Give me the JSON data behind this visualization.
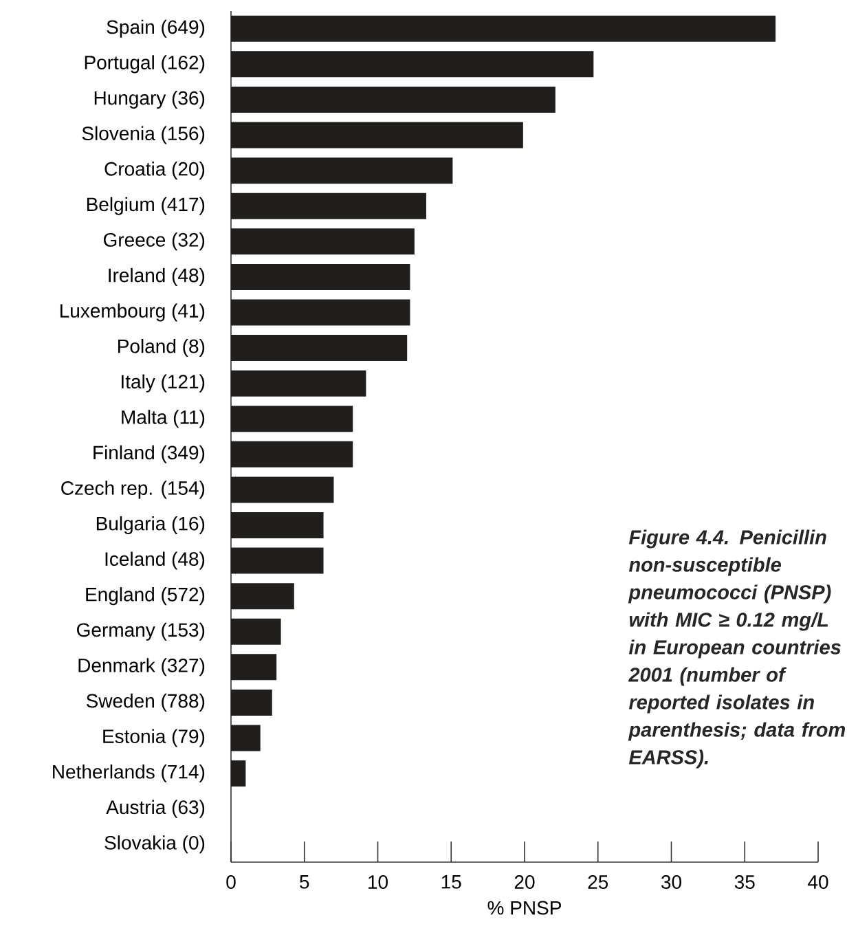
{
  "chart_data": {
    "type": "bar",
    "orientation": "horizontal",
    "categories": [
      "Spain (649)",
      "Portugal (162)",
      "Hungary (36)",
      "Slovenia (156)",
      "Croatia (20)",
      "Belgium (417)",
      "Greece (32)",
      "Ireland (48)",
      "Luxembourg (41)",
      "Poland (8)",
      "Italy (121)",
      "Malta (11)",
      "Finland (349)",
      "Czech rep. (154)",
      "Bulgaria (16)",
      "Iceland (48)",
      "England (572)",
      "Germany (153)",
      "Denmark (327)",
      "Sweden (788)",
      "Estonia (79)",
      "Netherlands (714)",
      "Austria (63)",
      "Slovakia (0)"
    ],
    "values": [
      37.1,
      24.7,
      22.1,
      19.9,
      15.1,
      13.3,
      12.5,
      12.2,
      12.2,
      12.0,
      9.2,
      8.3,
      8.3,
      7.0,
      6.3,
      6.3,
      4.3,
      3.4,
      3.1,
      2.8,
      2.0,
      1.0,
      0,
      0
    ],
    "color": "#201f1d",
    "xlim": [
      0,
      40
    ],
    "xticks": [
      0,
      5,
      10,
      15,
      20,
      25,
      30,
      35,
      40
    ],
    "xlabel": "% PNSP",
    "annotations": [
      "Figure 4.4. Penicillin non-susceptible pneumococci (PNSP) with MIC ≥ 0.12 mg/L in European countries 2001 (number of reported isolates in parenthesis; data from EARSS)."
    ]
  }
}
